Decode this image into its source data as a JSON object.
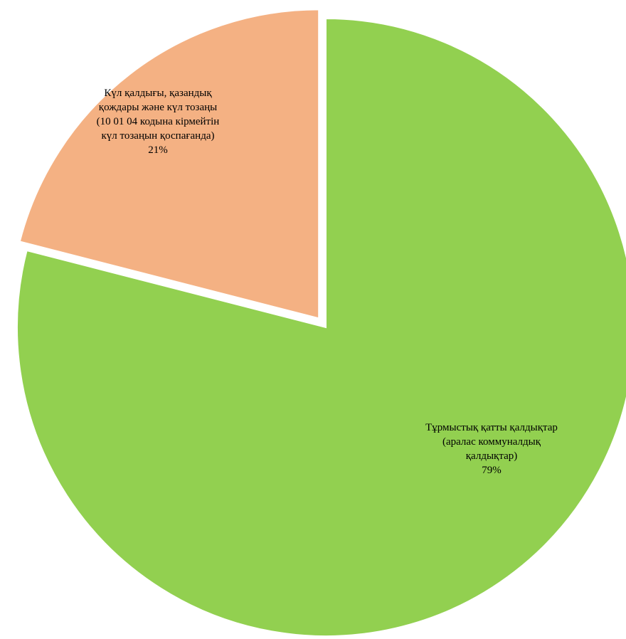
{
  "chart_data": {
    "type": "pie",
    "exploded": true,
    "start_angle": "12 o'clock, clockwise",
    "slices": [
      {
        "id": "household",
        "label_lines": [
          "Тұрмыстық қатты қалдықтар",
          "(аралас коммуналдық",
          "қалдықтар)"
        ],
        "percent_label": "79%",
        "value": 79,
        "color": "#92d050"
      },
      {
        "id": "ash",
        "label_lines": [
          "Күл қалдығы, қазандық",
          "қождары және күл тозаңы",
          "(10 01 04 кодына кірмейтін",
          "күл тозаңын қоспағанда)"
        ],
        "percent_label": "21%",
        "value": 21,
        "color": "#f4b183"
      }
    ]
  }
}
